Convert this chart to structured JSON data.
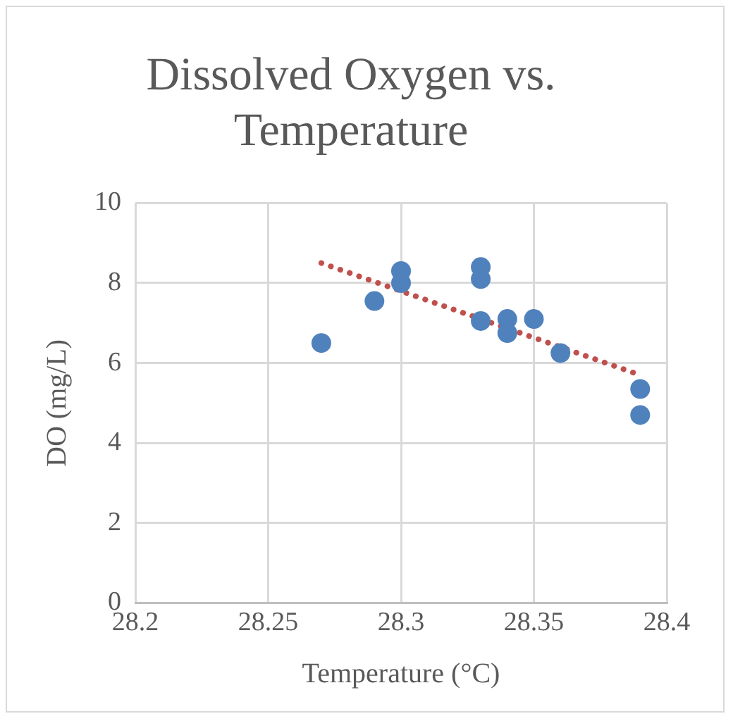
{
  "chart_data": {
    "type": "scatter",
    "title": "Dissolved Oxygen vs. Temperature",
    "xlabel": "Temperature (°C)",
    "ylabel": "DO (mg/L)",
    "xlim": [
      28.2,
      28.4
    ],
    "xticks": [
      28.2,
      28.25,
      28.3,
      28.35,
      28.4
    ],
    "ylim": [
      0,
      10
    ],
    "yticks": [
      0,
      2,
      4,
      6,
      8,
      10
    ],
    "grid": true,
    "legend": false,
    "marker": "circle",
    "series": [
      {
        "type": "scatter",
        "color": "#4f81bd",
        "x": [
          28.27,
          28.29,
          28.3,
          28.3,
          28.33,
          28.33,
          28.33,
          28.34,
          28.34,
          28.35,
          28.36,
          28.39,
          28.39
        ],
        "values": [
          6.5,
          7.55,
          8.3,
          8.0,
          8.4,
          8.1,
          7.05,
          7.1,
          6.75,
          7.1,
          6.25,
          5.35,
          4.7
        ]
      },
      {
        "type": "line",
        "color": "#c0504d",
        "line_style": "dotted",
        "marker": "none",
        "x": [
          28.27,
          28.39
        ],
        "values": [
          8.5,
          5.7
        ]
      }
    ]
  }
}
